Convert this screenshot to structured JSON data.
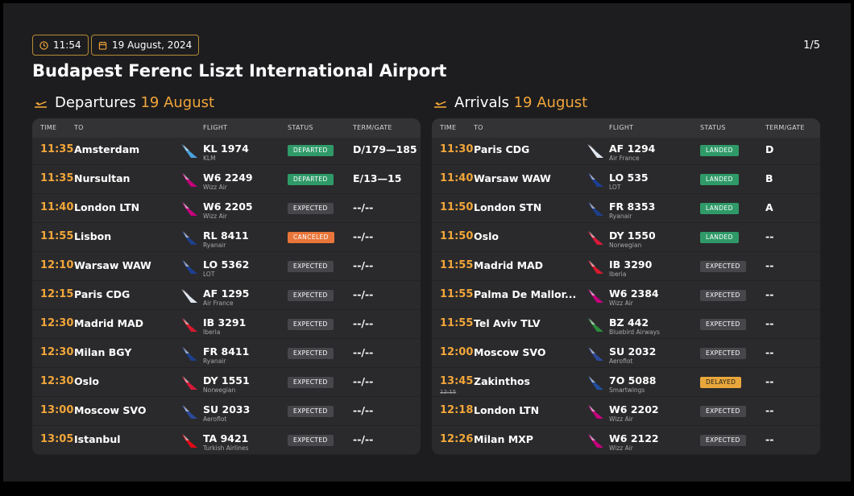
{
  "header": {
    "time": "11:54",
    "date": "19 August, 2024",
    "page": "1/5",
    "title": "Budapest Ferenc Liszt International Airport"
  },
  "departures": {
    "label": "Departures",
    "date": "19 August",
    "columns": [
      "TIME",
      "TO",
      "FLIGHT",
      "STATUS",
      "TERM/GATE"
    ],
    "rows": [
      {
        "time": "11:35",
        "place": "Amsterdam",
        "flight": "KL 1974",
        "airline": "KLM",
        "status": "DEPARTED",
        "gate": "D/179—185",
        "status_color": "#2f9a68",
        "tail_color": "#4aa3df"
      },
      {
        "time": "11:35",
        "place": "Nursultan",
        "flight": "W6 2249",
        "airline": "Wizz Air",
        "status": "DEPARTED",
        "gate": "E/13—15",
        "status_color": "#2f9a68",
        "tail_color": "#c6007e"
      },
      {
        "time": "11:40",
        "place": "London LTN",
        "flight": "W6 2205",
        "airline": "Wizz Air",
        "status": "EXPECTED",
        "gate": "--/--",
        "status_color": "#47474b",
        "tail_color": "#c6007e"
      },
      {
        "time": "11:55",
        "place": "Lisbon",
        "flight": "RL 8411",
        "airline": "Ryanair",
        "status": "CANCELED",
        "gate": "--/--",
        "status_color": "#e8763a",
        "tail_color": "#1d3f8c"
      },
      {
        "time": "12:10",
        "place": "Warsaw WAW",
        "flight": "LO 5362",
        "airline": "LOT",
        "status": "EXPECTED",
        "gate": "--/--",
        "status_color": "#47474b",
        "tail_color": "#1c3f94"
      },
      {
        "time": "12:15",
        "place": "Paris CDG",
        "flight": "AF 1295",
        "airline": "Air France",
        "status": "EXPECTED",
        "gate": "--/--",
        "status_color": "#47474b",
        "tail_color": "#dfe6f0"
      },
      {
        "time": "12:30",
        "place": "Madrid MAD",
        "flight": "IB 3291",
        "airline": "Iberia",
        "status": "EXPECTED",
        "gate": "--/--",
        "status_color": "#47474b",
        "tail_color": "#d7192d"
      },
      {
        "time": "12:30",
        "place": "Milan BGY",
        "flight": "FR 8411",
        "airline": "Ryanair",
        "status": "EXPECTED",
        "gate": "--/--",
        "status_color": "#47474b",
        "tail_color": "#1d3f8c"
      },
      {
        "time": "12:30",
        "place": "Oslo",
        "flight": "DY 1551",
        "airline": "Norwegian",
        "status": "EXPECTED",
        "gate": "--/--",
        "status_color": "#47474b",
        "tail_color": "#d81939"
      },
      {
        "time": "13:00",
        "place": "Moscow SVO",
        "flight": "SU 2033",
        "airline": "Aeroflot",
        "status": "EXPECTED",
        "gate": "--/--",
        "status_color": "#47474b",
        "tail_color": "#2b4a9a"
      },
      {
        "time": "13:05",
        "place": "Istanbul",
        "flight": "TA 9421",
        "airline": "Turkish Airlines",
        "status": "EXPECTED",
        "gate": "--/--",
        "status_color": "#47474b",
        "tail_color": "#e30a17"
      }
    ]
  },
  "arrivals": {
    "label": "Arrivals",
    "date": "19 August",
    "columns": [
      "TIME",
      "TO",
      "FLIGHT",
      "STATUS",
      "TERM/GATE"
    ],
    "rows": [
      {
        "time": "11:30",
        "place": "Paris CDG",
        "flight": "AF 1294",
        "airline": "Air France",
        "status": "LANDED",
        "gate": "D",
        "status_color": "#2f9a68",
        "tail_color": "#dfe6f0"
      },
      {
        "time": "11:40",
        "place": "Warsaw WAW",
        "flight": "LO 535",
        "airline": "LOT",
        "status": "LANDED",
        "gate": "B",
        "status_color": "#2f9a68",
        "tail_color": "#1c3f94"
      },
      {
        "time": "11:50",
        "place": "London STN",
        "flight": "FR 8353",
        "airline": "Ryanair",
        "status": "LANDED",
        "gate": "A",
        "status_color": "#2f9a68",
        "tail_color": "#1d3f8c"
      },
      {
        "time": "11:50",
        "place": "Oslo",
        "flight": "DY 1550",
        "airline": "Norwegian",
        "status": "LANDED",
        "gate": "--",
        "status_color": "#2f9a68",
        "tail_color": "#d81939"
      },
      {
        "time": "11:55",
        "place": "Madrid MAD",
        "flight": "IB 3290",
        "airline": "Iberia",
        "status": "EXPECTED",
        "gate": "--",
        "status_color": "#47474b",
        "tail_color": "#d7192d"
      },
      {
        "time": "11:55",
        "place": "Palma De Mallor...",
        "flight": "W6 2384",
        "airline": "Wizz Air",
        "status": "EXPECTED",
        "gate": "--",
        "status_color": "#47474b",
        "tail_color": "#c6007e"
      },
      {
        "time": "11:55",
        "place": "Tel Aviv TLV",
        "flight": "BZ 442",
        "airline": "Bluebird Airways",
        "status": "EXPECTED",
        "gate": "--",
        "status_color": "#47474b",
        "tail_color": "#2c8c3c"
      },
      {
        "time": "12:00",
        "place": "Moscow SVO",
        "flight": "SU 2032",
        "airline": "Aeroflot",
        "status": "EXPECTED",
        "gate": "--",
        "status_color": "#47474b",
        "tail_color": "#2b4a9a"
      },
      {
        "time": "13:45",
        "original_time": "12:15",
        "place": "Zakinthos",
        "flight": "7O 5088",
        "airline": "Smartwings",
        "status": "DELAYED",
        "gate": "--",
        "status_color": "#e9a73b",
        "tail_color": "#1f4fa0"
      },
      {
        "time": "12:18",
        "place": "London LTN",
        "flight": "W6 2202",
        "airline": "Wizz Air",
        "status": "EXPECTED",
        "gate": "--",
        "status_color": "#47474b",
        "tail_color": "#c6007e"
      },
      {
        "time": "12:26",
        "place": "Milan MXP",
        "flight": "W6 2122",
        "airline": "Wizz Air",
        "status": "EXPECTED",
        "gate": "--",
        "status_color": "#47474b",
        "tail_color": "#c6007e"
      }
    ]
  }
}
